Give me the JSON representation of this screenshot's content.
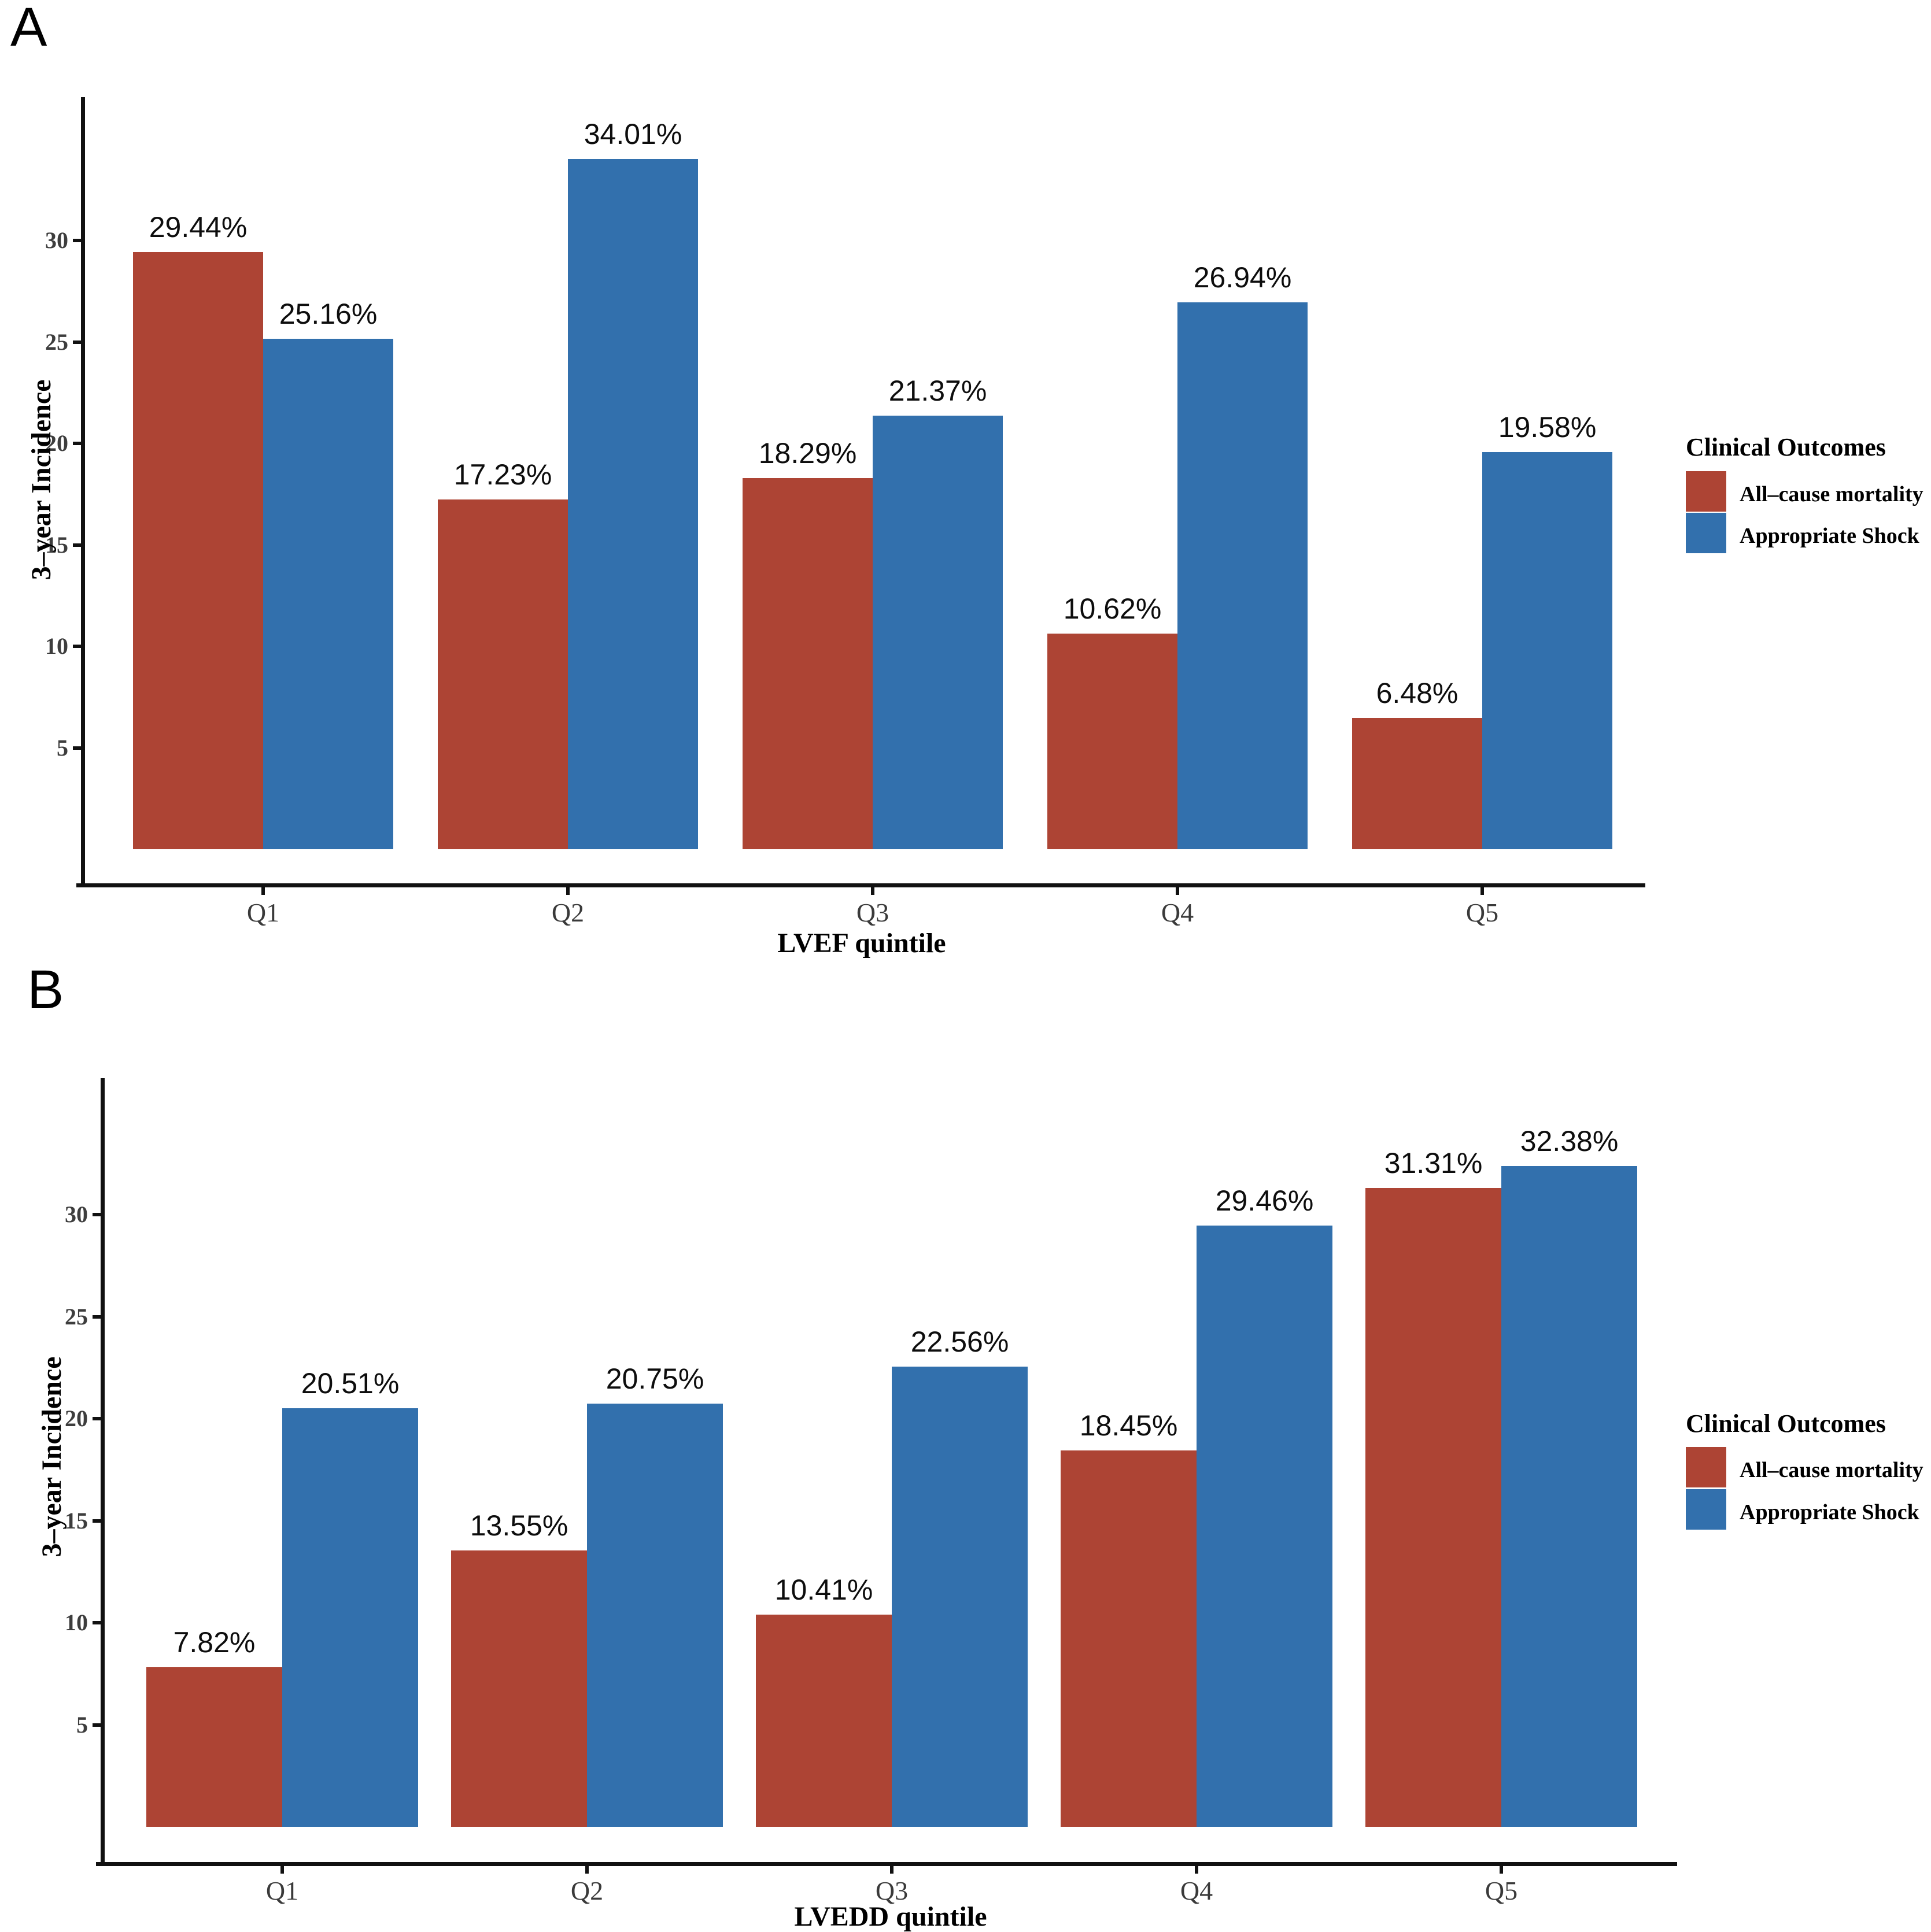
{
  "colors": {
    "all_cause_mortality": "#ad4434",
    "appropriate_shock": "#3270ad",
    "axis": "#111111",
    "tick_text": "#3d3d3d"
  },
  "legend": {
    "title": "Clinical Outcomes",
    "items": [
      {
        "label": "All–cause mortality",
        "color": "#ad4434"
      },
      {
        "label": "Appropriate Shock",
        "color": "#3270ad"
      }
    ]
  },
  "chart_data": [
    {
      "type": "bar",
      "panel_letter": "A",
      "title": "",
      "categories": [
        "Q1",
        "Q2",
        "Q3",
        "Q4",
        "Q5"
      ],
      "series": [
        {
          "name": "All–cause mortality",
          "color": "#ad4434",
          "values": [
            29.44,
            17.23,
            18.29,
            10.62,
            6.48
          ],
          "labels": [
            "29.44%",
            "17.23%",
            "18.29%",
            "10.62%",
            "6.48%"
          ]
        },
        {
          "name": "Appropriate Shock",
          "color": "#3270ad",
          "values": [
            25.16,
            34.01,
            21.37,
            26.94,
            19.58
          ],
          "labels": [
            "25.16%",
            "34.01%",
            "21.37%",
            "26.94%",
            "19.58%"
          ]
        }
      ],
      "xlabel": "LVEF quintile",
      "ylabel": "3–year Incidence",
      "yticks": [
        5,
        10,
        15,
        20,
        25,
        30
      ],
      "ylim": [
        0,
        37
      ],
      "grid": false,
      "legend_title": "Clinical Outcomes",
      "legend_position": "right"
    },
    {
      "type": "bar",
      "panel_letter": "B",
      "title": "",
      "categories": [
        "Q1",
        "Q2",
        "Q3",
        "Q4",
        "Q5"
      ],
      "series": [
        {
          "name": "All–cause mortality",
          "color": "#ad4434",
          "values": [
            7.82,
            13.55,
            10.41,
            18.45,
            31.31
          ],
          "labels": [
            "7.82%",
            "13.55%",
            "10.41%",
            "18.45%",
            "31.31%"
          ]
        },
        {
          "name": "Appropriate Shock",
          "color": "#3270ad",
          "values": [
            20.51,
            20.75,
            22.56,
            29.46,
            32.38
          ],
          "labels": [
            "20.51%",
            "20.75%",
            "22.56%",
            "29.46%",
            "32.38%"
          ]
        }
      ],
      "xlabel": "LVEDD quintile",
      "ylabel": "3–year Incidence",
      "yticks": [
        5,
        10,
        15,
        20,
        25,
        30
      ],
      "ylim": [
        0,
        37
      ],
      "grid": false,
      "legend_title": "Clinical Outcomes",
      "legend_position": "right"
    }
  ]
}
